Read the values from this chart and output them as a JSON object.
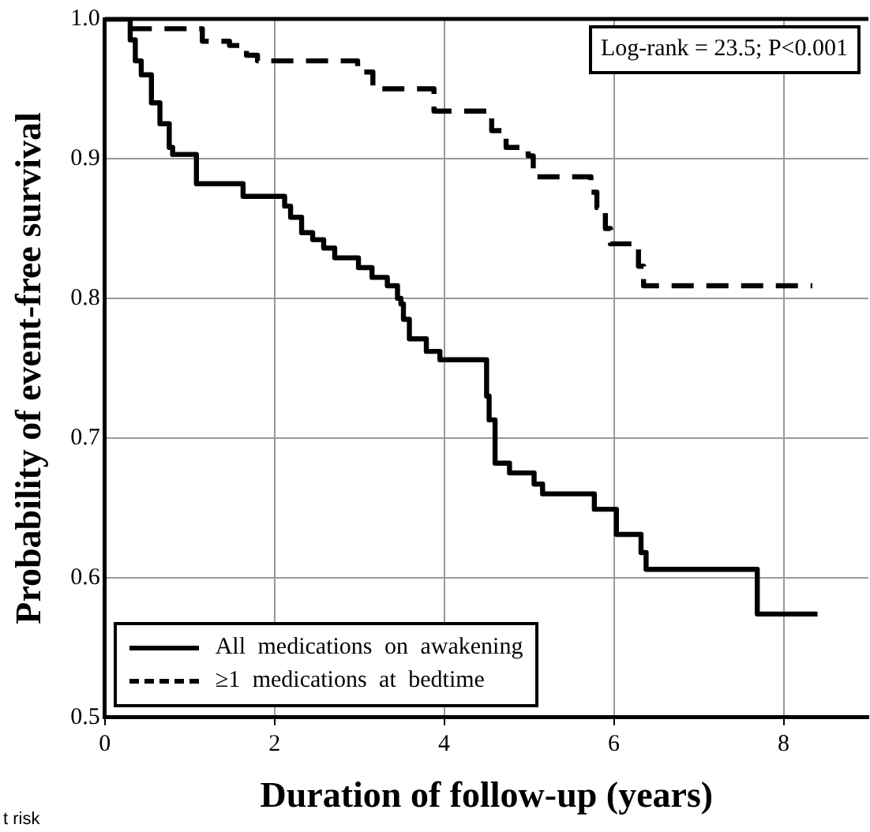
{
  "chart_data": {
    "type": "step",
    "xlabel": "Duration of follow-up (years)",
    "ylabel": "Probability of event-free survival",
    "xlim": [
      0,
      9
    ],
    "xticks": [
      0,
      2,
      4,
      6,
      8
    ],
    "ylim": [
      0.5,
      1.0
    ],
    "yticks": [
      {
        "value": 0.5,
        "label": "0.5"
      },
      {
        "value": 0.6,
        "label": "0.6"
      },
      {
        "value": 0.7,
        "label": "0.7"
      },
      {
        "value": 0.8,
        "label": "0.8"
      },
      {
        "value": 0.9,
        "label": "0.9"
      },
      {
        "value": 1.0,
        "label": "1.0"
      }
    ],
    "grid": true,
    "legend": "bottom left",
    "marker": "none",
    "annotations": [
      "Log-rank = 23.5; P<0.001",
      "t risk"
    ],
    "series": [
      {
        "name": "All medications on awakening",
        "color": "#000000",
        "line_style": "solid",
        "x": [
          0,
          0.3,
          0.36,
          0.43,
          0.55,
          0.65,
          0.76,
          0.8,
          1.08,
          1.63,
          2.12,
          2.19,
          2.32,
          2.45,
          2.58,
          2.71,
          2.99,
          3.15,
          3.33,
          3.45,
          3.49,
          3.52,
          3.59,
          3.79,
          3.95,
          4.5,
          4.53,
          4.6,
          4.77,
          5.06,
          5.16,
          5.77,
          6.03,
          6.32,
          6.38,
          7.69,
          8.4
        ],
        "values": [
          1.0,
          0.985,
          0.97,
          0.96,
          0.94,
          0.925,
          0.908,
          0.903,
          0.882,
          0.873,
          0.866,
          0.858,
          0.847,
          0.842,
          0.836,
          0.829,
          0.822,
          0.815,
          0.809,
          0.8,
          0.796,
          0.785,
          0.771,
          0.762,
          0.756,
          0.73,
          0.713,
          0.682,
          0.675,
          0.667,
          0.66,
          0.649,
          0.631,
          0.618,
          0.606,
          0.574,
          0.574
        ]
      },
      {
        "name": "≥1 medications at bedtime",
        "color": "#000000",
        "line_style": "dashed",
        "x": [
          0,
          0.23,
          1.15,
          1.47,
          1.67,
          1.8,
          2.98,
          3.16,
          3.88,
          4.56,
          4.73,
          4.99,
          5.05,
          5.73,
          5.8,
          5.9,
          5.96,
          6.29,
          6.35,
          8.34
        ],
        "values": [
          1.0,
          0.993,
          0.984,
          0.981,
          0.974,
          0.97,
          0.962,
          0.95,
          0.934,
          0.92,
          0.908,
          0.902,
          0.887,
          0.876,
          0.865,
          0.85,
          0.839,
          0.823,
          0.809,
          0.809
        ]
      }
    ]
  }
}
